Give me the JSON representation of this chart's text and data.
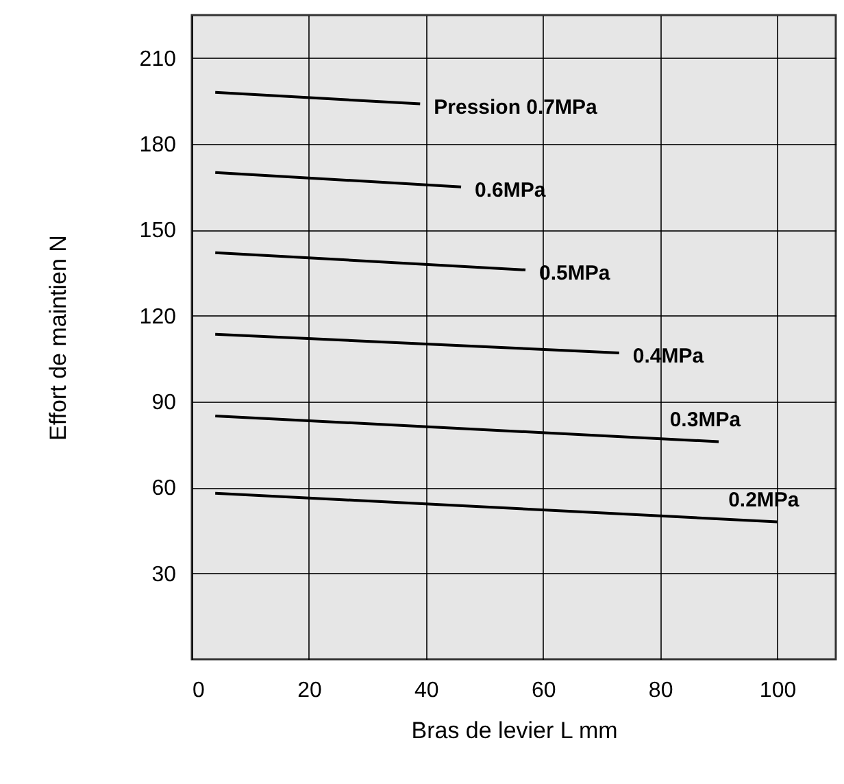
{
  "chart_data": {
    "type": "line",
    "xlabel": "Bras de levier  L mm",
    "ylabel": "Effort de maintien  N",
    "xlim": [
      0,
      110
    ],
    "ylim": [
      0,
      225
    ],
    "xticks": [
      0,
      20,
      40,
      60,
      80,
      100
    ],
    "yticks": [
      30,
      60,
      90,
      120,
      150,
      180,
      210
    ],
    "grid": true,
    "marker": "none",
    "line_style": "solid",
    "series": [
      {
        "name": "Pression 0.7MPa",
        "color": "#000000",
        "x": [
          4,
          39
        ],
        "values": [
          198,
          194
        ]
      },
      {
        "name": "0.6MPa",
        "color": "#000000",
        "x": [
          4,
          46
        ],
        "values": [
          170,
          165
        ]
      },
      {
        "name": "0.5MPa",
        "color": "#000000",
        "x": [
          4,
          57
        ],
        "values": [
          142,
          136
        ]
      },
      {
        "name": "0.4MPa",
        "color": "#000000",
        "x": [
          4,
          73
        ],
        "values": [
          113.5,
          107
        ]
      },
      {
        "name": "0.3MPa",
        "color": "#000000",
        "x": [
          4,
          90
        ],
        "values": [
          85,
          76
        ]
      },
      {
        "name": "0.2MPa",
        "color": "#000000",
        "x": [
          4,
          100
        ],
        "values": [
          58,
          48
        ]
      }
    ]
  }
}
